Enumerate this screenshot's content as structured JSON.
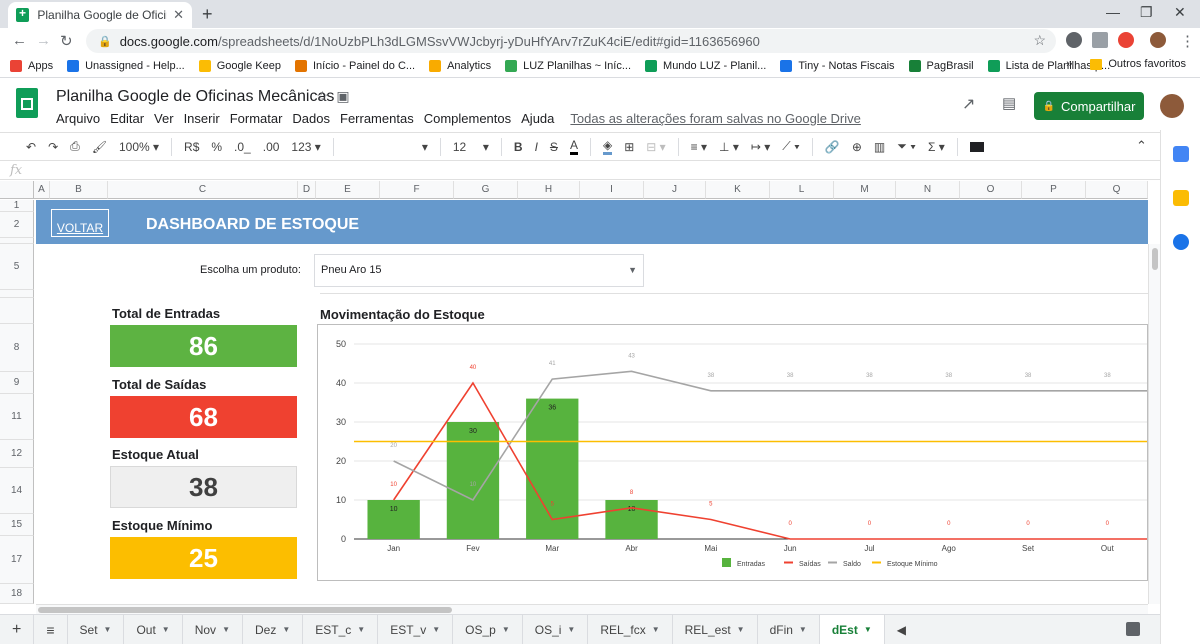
{
  "browser": {
    "tab_title": "Planilha Google de Oficinas Mec",
    "url_host": "docs.google.com",
    "url_path": "/spreadsheets/d/1NoUzbPLh3dLGMSsvVWJcbyrj-yDuHfYArv7rZuK4ciE/edit#gid=1163656960",
    "bookmarks": [
      {
        "label": "Apps",
        "color": "#ea4335"
      },
      {
        "label": "Unassigned - Help...",
        "color": "#1a73e8"
      },
      {
        "label": "Google Keep",
        "color": "#fbbc04"
      },
      {
        "label": "Início - Painel do C...",
        "color": "#e37400"
      },
      {
        "label": "Analytics",
        "color": "#f9ab00"
      },
      {
        "label": "LUZ Planilhas ~ Iníc...",
        "color": "#34a853"
      },
      {
        "label": "Mundo LUZ - Planil...",
        "color": "#0f9d58"
      },
      {
        "label": "Tiny - Notas Fiscais",
        "color": "#1a73e8"
      },
      {
        "label": "PagBrasil",
        "color": "#188038"
      },
      {
        "label": "Lista de Planilhas p...",
        "color": "#0f9d58"
      }
    ],
    "other_bookmarks": "Outros favoritos"
  },
  "sheets": {
    "title": "Planilha Google de Oficinas Mecânicas",
    "menu": [
      "Arquivo",
      "Editar",
      "Ver",
      "Inserir",
      "Formatar",
      "Dados",
      "Ferramentas",
      "Complementos",
      "Ajuda"
    ],
    "saved_status": "Todas as alterações foram salvas no Google Drive",
    "share_label": "Compartilhar",
    "toolbar": {
      "zoom": "100%",
      "currency": "R$",
      "percent": "%",
      "dec_less": ".0_",
      "dec_more": ".00",
      "format": "123",
      "font_size": "12"
    },
    "fx": "fx",
    "columns": [
      "A",
      "B",
      "C",
      "D",
      "E",
      "F",
      "G",
      "H",
      "I",
      "J",
      "K",
      "L",
      "M",
      "N",
      "O",
      "P",
      "Q"
    ],
    "rows": [
      "1",
      "2",
      "",
      "5",
      "",
      "8",
      "9",
      "11",
      "12",
      "14",
      "15",
      "17",
      "18"
    ]
  },
  "dashboard": {
    "back_label": "VOLTAR",
    "title": "DASHBOARD DE ESTOQUE",
    "product_label": "Escolha um produto:",
    "product_value": "Pneu Aro 15",
    "kpis": [
      {
        "label": "Total de Entradas",
        "value": "86",
        "color": "#5db342",
        "text_color": "#ffffff"
      },
      {
        "label": "Total de Saídas",
        "value": "68",
        "color": "#ef4130",
        "text_color": "#ffffff"
      },
      {
        "label": "Estoque Atual",
        "value": "38",
        "color": "#efefef",
        "text_color": "#404040"
      },
      {
        "label": "Estoque Mínimo",
        "value": "25",
        "color": "#fcbe00",
        "text_color": "#ffffff"
      }
    ],
    "chart_title": "Movimentação do Estoque"
  },
  "chart_data": {
    "type": "bar",
    "categories": [
      "Jan",
      "Fev",
      "Mar",
      "Abr",
      "Mai",
      "Jun",
      "Jul",
      "Ago",
      "Set",
      "Out"
    ],
    "series": [
      {
        "name": "Entradas",
        "kind": "bar",
        "color": "#57b33e",
        "values": [
          10,
          30,
          36,
          10,
          0,
          0,
          0,
          0,
          0,
          0
        ],
        "labels": [
          "10",
          "30",
          "36",
          "10",
          "",
          "",
          "",
          "",
          "",
          ""
        ]
      },
      {
        "name": "Saídas",
        "kind": "line",
        "color": "#ef4130",
        "values": [
          10,
          40,
          5,
          8,
          5,
          0,
          0,
          0,
          0,
          0
        ],
        "labels": [
          "10",
          "40",
          "5",
          "8",
          "5",
          "0",
          "0",
          "0",
          "0",
          "0"
        ]
      },
      {
        "name": "Saldo",
        "kind": "line",
        "color": "#a5a5a5",
        "values": [
          20,
          10,
          41,
          43,
          38,
          38,
          38,
          38,
          38,
          38
        ],
        "labels": [
          "20",
          "10",
          "41",
          "43",
          "38",
          "38",
          "38",
          "38",
          "38",
          "38"
        ]
      },
      {
        "name": "Estoque Mínimo",
        "kind": "line",
        "color": "#fcbe00",
        "values": [
          25,
          25,
          25,
          25,
          25,
          25,
          25,
          25,
          25,
          25
        ]
      }
    ],
    "ylim": [
      0,
      50
    ],
    "yticks": [
      0,
      10,
      20,
      30,
      40,
      50
    ],
    "legend": "bottom",
    "grid": true
  },
  "sheet_tabs": [
    "Set",
    "Out",
    "Nov",
    "Dez",
    "EST_c",
    "EST_v",
    "OS_p",
    "OS_i",
    "REL_fcx",
    "REL_est",
    "dFin",
    "dEst"
  ],
  "active_tab": "dEst"
}
